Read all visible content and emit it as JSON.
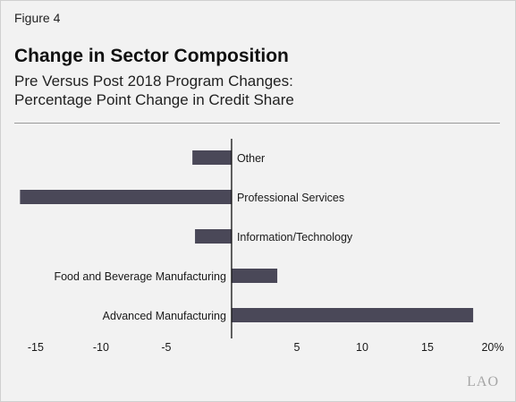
{
  "figure_label": "Figure 4",
  "title": "Change in Sector Composition",
  "subtitle_line1": "Pre Versus Post 2018 Program Changes:",
  "subtitle_line2": "Percentage Point Change in Credit Share",
  "logo_text": "LAO",
  "colors": {
    "bar": "#4a4858",
    "axis": "#111111",
    "text": "#1a1a1a"
  },
  "chart_data": {
    "type": "bar",
    "orientation": "horizontal",
    "categories": [
      "Other",
      "Professional Services",
      "Information/Technology",
      "Food and Beverage Manufacturing",
      "Advanced Manufacturing"
    ],
    "values": [
      -3.0,
      -16.2,
      -2.8,
      3.5,
      18.5
    ],
    "xlim": [
      -16.5,
      20
    ],
    "xticks": [
      -15,
      -10,
      -5,
      5,
      10,
      15,
      20
    ],
    "xtick_labels": [
      "-15",
      "-10",
      "-5",
      "5",
      "10",
      "15",
      "20%"
    ],
    "grid": false,
    "legend": "none"
  }
}
